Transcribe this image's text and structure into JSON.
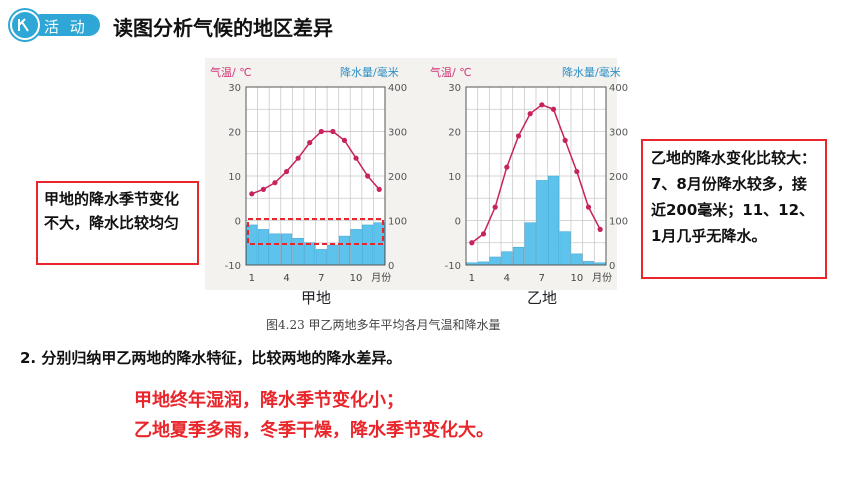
{
  "header": {
    "badge_label": "活 动",
    "title": "读图分析气候的地区差异"
  },
  "figure": {
    "caption": "图4.23  甲乙两地多年平均各月气温和降水量",
    "left_axis_title": "气温/ ℃",
    "right_axis_title": "降水量/毫米",
    "x_unit": "月份"
  },
  "chart_data": [
    {
      "type": "bar+line",
      "title": "甲地",
      "categories": [
        "1",
        "2",
        "3",
        "4",
        "5",
        "6",
        "7",
        "8",
        "9",
        "10",
        "11",
        "12"
      ],
      "x_ticks": [
        "1",
        "4",
        "7",
        "10"
      ],
      "temperature": {
        "ylim": [
          -10,
          30
        ],
        "ticks": [
          "30",
          "20",
          "10",
          "0",
          "-10"
        ],
        "values": [
          6,
          7,
          8.5,
          11,
          14,
          17.5,
          20,
          20,
          18,
          14,
          10,
          7
        ]
      },
      "precipitation": {
        "ylim": [
          0,
          400
        ],
        "ticks": [
          "400",
          "300",
          "200",
          "100",
          "0"
        ],
        "values": [
          90,
          80,
          70,
          70,
          60,
          50,
          35,
          45,
          65,
          80,
          90,
          95
        ]
      }
    },
    {
      "type": "bar+line",
      "title": "乙地",
      "categories": [
        "1",
        "2",
        "3",
        "4",
        "5",
        "6",
        "7",
        "8",
        "9",
        "10",
        "11",
        "12"
      ],
      "x_ticks": [
        "1",
        "4",
        "7",
        "10"
      ],
      "temperature": {
        "ylim": [
          -10,
          30
        ],
        "ticks": [
          "30",
          "20",
          "10",
          "0",
          "-10"
        ],
        "values": [
          -5,
          -3,
          3,
          12,
          19,
          24,
          26,
          25,
          18,
          11,
          3,
          -2
        ]
      },
      "precipitation": {
        "ylim": [
          0,
          400
        ],
        "ticks": [
          "400",
          "300",
          "200",
          "100",
          "0"
        ],
        "values": [
          5,
          7,
          18,
          30,
          40,
          95,
          190,
          200,
          75,
          25,
          8,
          5
        ]
      }
    }
  ],
  "callout_left": "甲地的降水季节变化不大，降水比较均匀",
  "callout_right": "乙地的降水变化比较大：7、8月份降水较多，接近200毫米；11、12、1月几乎无降水。",
  "question": "2. 分别归纳甲乙两地的降水特征，比较两地的降水差异。",
  "answer": {
    "line1": "甲地终年湿润，降水季节变化小；",
    "line2": "乙地夏季多雨，冬季干燥，降水季节变化大。"
  },
  "colors": {
    "accent_red": "#e8262b",
    "badge_blue": "#2ea7d6",
    "temp_line": "#c8235f",
    "bar_fill": "#5ec3ec",
    "axis_label_pink": "#d2387a",
    "axis_label_blue": "#2b8fc4"
  }
}
